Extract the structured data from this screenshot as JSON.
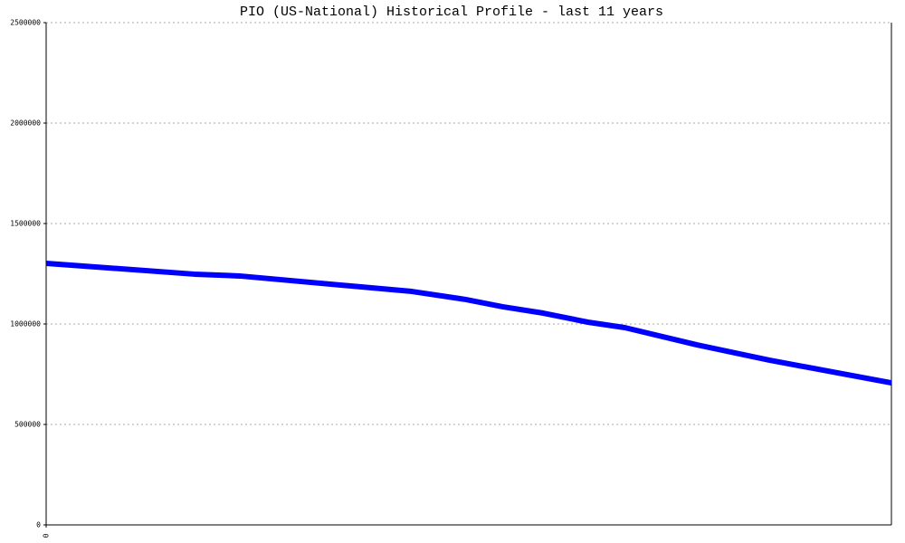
{
  "chart_data": {
    "type": "line",
    "title": "PIO (US-National) Historical Profile - last 11 years",
    "x": [
      0,
      1.93,
      2.52,
      4.76,
      5.46,
      5.94,
      6.47,
      7.05,
      7.53,
      8.47,
      9.41,
      11
    ],
    "series": [
      {
        "color": "#0000ff",
        "values": [
          1302000,
          1248000,
          1239000,
          1162000,
          1122000,
          1086000,
          1054000,
          1009000,
          982000,
          896000,
          820000,
          707000
        ]
      }
    ],
    "xlim": [
      0,
      11
    ],
    "xticks": [
      0
    ],
    "ylim": [
      0,
      2500000
    ],
    "yticks": [
      0,
      500000,
      1000000,
      1500000,
      2000000,
      2500000
    ],
    "grid": true
  }
}
